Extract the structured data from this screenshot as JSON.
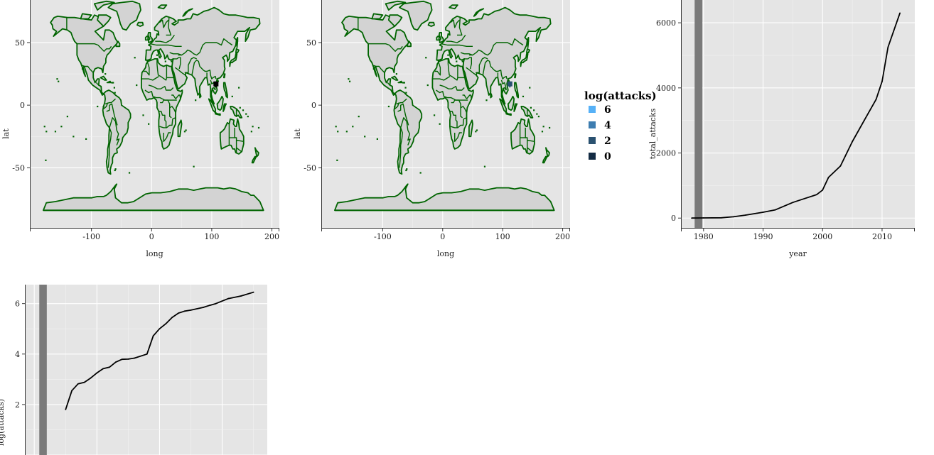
{
  "chart_data": [
    {
      "type": "map",
      "xlabel": "long",
      "ylabel": "lat",
      "xlim": [
        -200,
        210
      ],
      "ylim": [
        -98,
        84
      ],
      "xticks": [
        -100,
        0,
        100,
        200
      ],
      "xtick_labels": [
        "-100",
        "0",
        "100",
        "200"
      ],
      "yticks": [
        -50,
        0,
        50
      ],
      "ytick_labels": [
        "-50",
        "0",
        "50"
      ],
      "colors": {
        "panel": "#e5e5e5",
        "land": "#d3d3d3",
        "border": "#006400",
        "marker": "#000000"
      },
      "markers": [
        {
          "long": 107,
          "lat": 17
        }
      ]
    },
    {
      "type": "map",
      "xlabel": "long",
      "ylabel": "lat",
      "xlim": [
        -200,
        210
      ],
      "ylim": [
        -98,
        84
      ],
      "xticks": [
        -100,
        0,
        100,
        200
      ],
      "xtick_labels": [
        "-100",
        "0",
        "100",
        "200"
      ],
      "yticks": [
        -50,
        0,
        50
      ],
      "ytick_labels": [
        "-50",
        "0",
        "50"
      ],
      "colors": {
        "panel": "#e5e5e5",
        "land": "#d3d3d3",
        "border": "#006400"
      },
      "markers": [
        {
          "long": 112,
          "lat": 17,
          "value": 1.6
        }
      ],
      "legend": {
        "title": "log(attacks)",
        "position": "right",
        "entries": [
          {
            "label": "6",
            "color": "#56B1F7"
          },
          {
            "label": "4",
            "color": "#3D7DB0"
          },
          {
            "label": "2",
            "color": "#2A5170"
          },
          {
            "label": "0",
            "color": "#132B43"
          }
        ]
      }
    },
    {
      "type": "line",
      "xlabel": "year",
      "ylabel": "total_attacks",
      "xlim": [
        1976.2,
        2015.5
      ],
      "ylim": [
        -300,
        6700
      ],
      "xticks": [
        1980,
        1990,
        2000,
        2010
      ],
      "xtick_labels": [
        "1980",
        "1990",
        "2000",
        "2010"
      ],
      "yticks": [
        0,
        2000,
        4000,
        6000
      ],
      "ytick_labels": [
        "0",
        "2000",
        "4000",
        "6000"
      ],
      "band": {
        "x_start": 1978.5,
        "x_end": 1979.8,
        "color": "#7a7a7a"
      },
      "x": [
        1978,
        1980,
        1983,
        1985,
        1987,
        1989,
        1990,
        1992,
        1995,
        1997,
        1999,
        2000,
        2001,
        2003,
        2005,
        2007,
        2009,
        2010,
        2011,
        2013
      ],
      "values": [
        0,
        5,
        10,
        40,
        90,
        150,
        180,
        250,
        480,
        600,
        720,
        860,
        1250,
        1600,
        2350,
        3000,
        3650,
        4200,
        5250,
        6300
      ]
    },
    {
      "type": "line",
      "xlabel": "",
      "ylabel": "log(attacks)",
      "xlim": [
        -1.5,
        37.2
      ],
      "ylim": [
        0,
        6.75
      ],
      "yticks": [
        2,
        4,
        6
      ],
      "ytick_labels": [
        "2",
        "4",
        "6"
      ],
      "band": {
        "x_start": 0.8,
        "x_end": 2.0,
        "color": "#7a7a7a"
      },
      "x": [
        5,
        6,
        7,
        8,
        9,
        10,
        11,
        12,
        13,
        14,
        15,
        16,
        18,
        19,
        20,
        21,
        22,
        23,
        24,
        25,
        27,
        28,
        29,
        30,
        31,
        33,
        35
      ],
      "values": [
        1.8,
        2.55,
        2.82,
        2.88,
        3.05,
        3.25,
        3.42,
        3.48,
        3.68,
        3.79,
        3.8,
        3.84,
        4.0,
        4.72,
        5.0,
        5.2,
        5.45,
        5.62,
        5.7,
        5.74,
        5.85,
        5.93,
        6.0,
        6.1,
        6.2,
        6.3,
        6.45
      ]
    }
  ]
}
